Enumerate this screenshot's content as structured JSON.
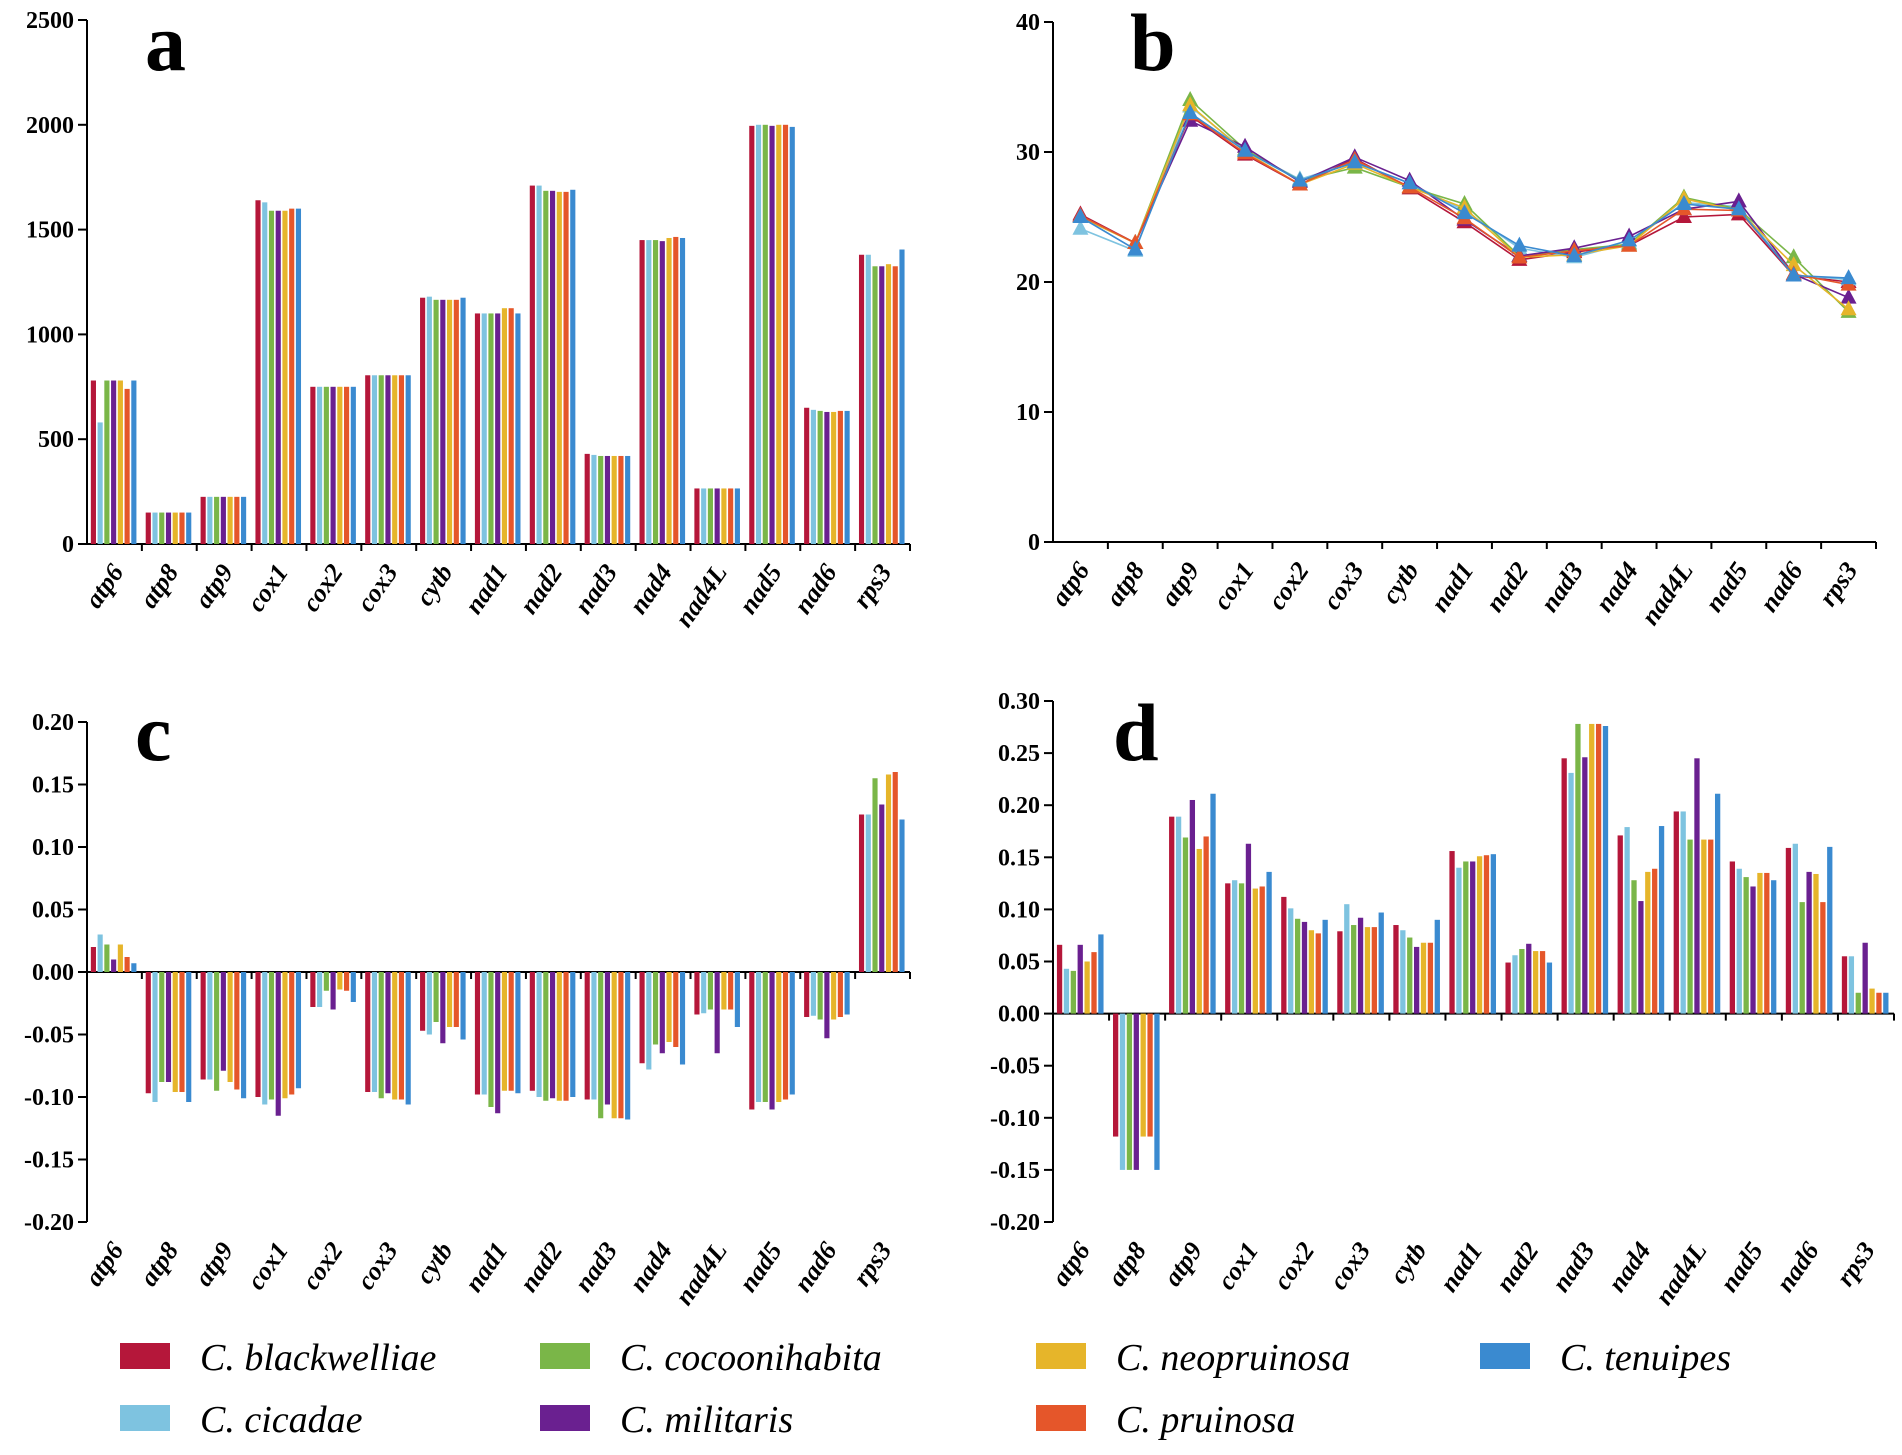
{
  "genes": [
    "atp6",
    "atp8",
    "atp9",
    "cox1",
    "cox2",
    "cox3",
    "cytb",
    "nad1",
    "nad2",
    "nad3",
    "nad4",
    "nad4L",
    "nad5",
    "nad6",
    "rps3"
  ],
  "species": [
    {
      "name": "C. blackwelliae",
      "color": "#b5173a"
    },
    {
      "name": "C. cicadae",
      "color": "#7ec3e0"
    },
    {
      "name": "C. cocoonihabita",
      "color": "#7ab648"
    },
    {
      "name": "C. militaris",
      "color": "#6a2090"
    },
    {
      "name": "C. neopruinosa",
      "color": "#e6b52a"
    },
    {
      "name": "C. pruinosa",
      "color": "#e5562a"
    },
    {
      "name": "C. tenuipes",
      "color": "#3a8ad0"
    }
  ],
  "legend": {
    "items": [
      "C. blackwelliae",
      "C. cocoonihabita",
      "C. cicadae",
      "C. militaris",
      "C. neopruinosa",
      "C. tenuipes",
      "C. pruinosa"
    ]
  },
  "chart_data": [
    {
      "id": "a",
      "panel_label": "a",
      "type": "bar",
      "ylim": [
        0,
        2500
      ],
      "yticks": [
        "0",
        "500",
        "1000",
        "1500",
        "2000",
        "2500"
      ],
      "yticks_values": [
        0,
        500,
        1000,
        1500,
        2000,
        2500
      ],
      "series_values": [
        [
          780,
          150,
          225,
          1640,
          750,
          805,
          1175,
          1100,
          1710,
          430,
          1450,
          265,
          1995,
          650,
          1380
        ],
        [
          580,
          150,
          225,
          1630,
          750,
          805,
          1180,
          1100,
          1710,
          425,
          1450,
          265,
          2000,
          640,
          1380
        ],
        [
          780,
          150,
          225,
          1590,
          750,
          805,
          1165,
          1100,
          1685,
          420,
          1450,
          265,
          2000,
          635,
          1325
        ],
        [
          780,
          150,
          225,
          1590,
          750,
          805,
          1165,
          1100,
          1685,
          420,
          1445,
          265,
          1995,
          630,
          1325
        ],
        [
          780,
          150,
          225,
          1590,
          750,
          805,
          1165,
          1125,
          1680,
          420,
          1460,
          265,
          2000,
          630,
          1335
        ],
        [
          740,
          150,
          225,
          1600,
          750,
          805,
          1165,
          1125,
          1680,
          420,
          1465,
          265,
          2000,
          635,
          1325
        ],
        [
          780,
          150,
          225,
          1600,
          750,
          805,
          1175,
          1100,
          1690,
          420,
          1460,
          265,
          1990,
          635,
          1405
        ]
      ]
    },
    {
      "id": "b",
      "panel_label": "b",
      "type": "line",
      "ylim": [
        0,
        40
      ],
      "yticks": [
        "0",
        "10",
        "20",
        "30",
        "40"
      ],
      "yticks_values": [
        0,
        10,
        20,
        30,
        40
      ],
      "series_values": [
        [
          25.2,
          23.0,
          32.8,
          29.8,
          27.5,
          29.5,
          27.2,
          24.6,
          21.7,
          22.3,
          22.8,
          25.0,
          25.2,
          20.5,
          20.0
        ],
        [
          24.1,
          22.4,
          33.5,
          30.1,
          27.9,
          29.2,
          27.6,
          25.5,
          22.6,
          21.9,
          23.0,
          26.1,
          25.8,
          20.5,
          20.2
        ],
        [
          25.0,
          23.0,
          34.0,
          30.2,
          27.8,
          28.8,
          27.3,
          26.0,
          22.0,
          22.5,
          22.9,
          26.5,
          25.6,
          21.9,
          17.7
        ],
        [
          25.1,
          23.0,
          32.4,
          30.4,
          27.7,
          29.6,
          27.8,
          24.8,
          22.0,
          22.6,
          23.5,
          25.6,
          26.2,
          20.6,
          18.8
        ],
        [
          25.0,
          23.0,
          33.6,
          30.0,
          27.5,
          29.1,
          27.3,
          25.7,
          21.9,
          22.1,
          22.8,
          26.4,
          25.5,
          21.3,
          17.9
        ],
        [
          25.1,
          23.0,
          32.9,
          29.9,
          27.5,
          29.4,
          27.3,
          24.9,
          21.9,
          22.4,
          22.8,
          25.6,
          25.5,
          20.6,
          19.8
        ],
        [
          25.0,
          22.5,
          33.0,
          30.1,
          27.8,
          29.2,
          27.6,
          25.3,
          22.8,
          22.0,
          23.2,
          26.0,
          25.6,
          20.5,
          20.3
        ]
      ]
    },
    {
      "id": "c",
      "panel_label": "c",
      "type": "bar",
      "ylim": [
        -0.2,
        0.2
      ],
      "yticks": [
        "-0.20",
        "-0.15",
        "-0.10",
        "-0.05",
        "0.00",
        "0.05",
        "0.10",
        "0.15",
        "0.20"
      ],
      "yticks_values": [
        -0.2,
        -0.15,
        -0.1,
        -0.05,
        0.0,
        0.05,
        0.1,
        0.15,
        0.2
      ],
      "series_values": [
        [
          0.02,
          -0.097,
          -0.086,
          -0.1,
          -0.028,
          -0.096,
          -0.047,
          -0.098,
          -0.095,
          -0.102,
          -0.073,
          -0.034,
          -0.11,
          -0.036,
          0.126
        ],
        [
          0.03,
          -0.104,
          -0.086,
          -0.106,
          -0.028,
          -0.096,
          -0.05,
          -0.098,
          -0.1,
          -0.102,
          -0.078,
          -0.033,
          -0.104,
          -0.035,
          0.126
        ],
        [
          0.022,
          -0.088,
          -0.095,
          -0.102,
          -0.015,
          -0.101,
          -0.04,
          -0.108,
          -0.103,
          -0.117,
          -0.058,
          -0.03,
          -0.104,
          -0.038,
          0.155
        ],
        [
          0.01,
          -0.088,
          -0.079,
          -0.115,
          -0.03,
          -0.097,
          -0.057,
          -0.113,
          -0.101,
          -0.106,
          -0.065,
          -0.065,
          -0.11,
          -0.053,
          0.134
        ],
        [
          0.022,
          -0.096,
          -0.088,
          -0.101,
          -0.014,
          -0.102,
          -0.044,
          -0.095,
          -0.103,
          -0.117,
          -0.056,
          -0.03,
          -0.104,
          -0.038,
          0.158
        ],
        [
          0.012,
          -0.096,
          -0.094,
          -0.098,
          -0.015,
          -0.102,
          -0.044,
          -0.095,
          -0.103,
          -0.117,
          -0.06,
          -0.03,
          -0.102,
          -0.036,
          0.16
        ],
        [
          0.007,
          -0.104,
          -0.101,
          -0.093,
          -0.024,
          -0.106,
          -0.054,
          -0.097,
          -0.1,
          -0.118,
          -0.074,
          -0.044,
          -0.098,
          -0.034,
          0.122
        ]
      ]
    },
    {
      "id": "d",
      "panel_label": "d",
      "type": "bar",
      "ylim": [
        -0.2,
        0.3
      ],
      "yticks": [
        "-0.20",
        "-0.15",
        "-0.10",
        "-0.05",
        "0.00",
        "0.05",
        "0.10",
        "0.15",
        "0.20",
        "0.25",
        "0.30"
      ],
      "yticks_values": [
        -0.2,
        -0.15,
        -0.1,
        -0.05,
        0.0,
        0.05,
        0.1,
        0.15,
        0.2,
        0.25,
        0.3
      ],
      "series_values": [
        [
          0.066,
          -0.118,
          0.189,
          0.125,
          0.112,
          0.079,
          0.085,
          0.156,
          0.049,
          0.245,
          0.171,
          0.194,
          0.146,
          0.159,
          0.055
        ],
        [
          0.043,
          -0.15,
          0.189,
          0.128,
          0.101,
          0.105,
          0.08,
          0.14,
          0.056,
          0.231,
          0.179,
          0.194,
          0.139,
          0.163,
          0.055
        ],
        [
          0.041,
          -0.15,
          0.169,
          0.125,
          0.091,
          0.085,
          0.073,
          0.146,
          0.062,
          0.278,
          0.128,
          0.167,
          0.131,
          0.107,
          0.02
        ],
        [
          0.066,
          -0.15,
          0.205,
          0.163,
          0.088,
          0.092,
          0.064,
          0.146,
          0.067,
          0.246,
          0.108,
          0.245,
          0.122,
          0.136,
          0.068
        ],
        [
          0.05,
          -0.118,
          0.158,
          0.12,
          0.08,
          0.083,
          0.068,
          0.151,
          0.06,
          0.278,
          0.136,
          0.167,
          0.135,
          0.134,
          0.024
        ],
        [
          0.059,
          -0.118,
          0.17,
          0.122,
          0.077,
          0.083,
          0.068,
          0.152,
          0.06,
          0.278,
          0.139,
          0.167,
          0.135,
          0.107,
          0.02
        ],
        [
          0.076,
          -0.15,
          0.211,
          0.136,
          0.09,
          0.097,
          0.09,
          0.153,
          0.049,
          0.276,
          0.18,
          0.211,
          0.128,
          0.16,
          0.02
        ]
      ]
    }
  ]
}
